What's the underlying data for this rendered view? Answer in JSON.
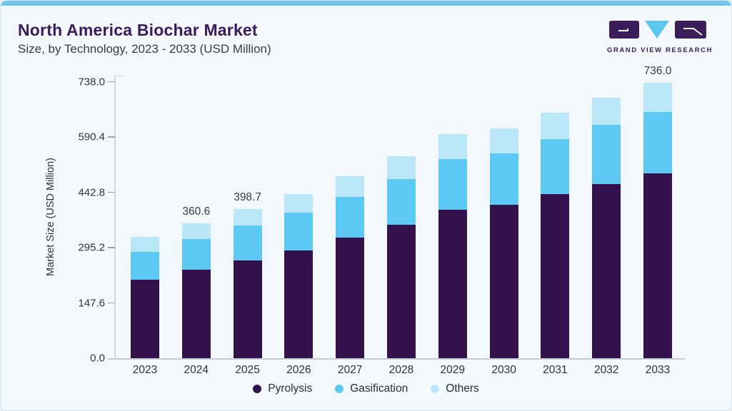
{
  "header": {
    "title": "North America Biochar Market",
    "subtitle": "Size, by Technology, 2023 - 2033 (USD Million)"
  },
  "logo": {
    "brand": "GRAND VIEW RESEARCH",
    "purple": "#3b1d5a",
    "blue": "#5bc6f0"
  },
  "chart_data": {
    "type": "bar",
    "stacked": true,
    "title": "North America Biochar Market Size, by Technology, 2023 - 2033 (USD Million)",
    "xlabel": "",
    "ylabel": "Market Size (USD Million)",
    "ylim": [
      0,
      738
    ],
    "grid": false,
    "legend_position": "bottom",
    "categories": [
      "2023",
      "2024",
      "2025",
      "2026",
      "2027",
      "2028",
      "2029",
      "2030",
      "2031",
      "2032",
      "2033"
    ],
    "series": [
      {
        "name": "Pyrolysis",
        "color": "#33114d",
        "values": [
          210,
          235.9,
          261.7,
          288,
          321,
          357,
          397,
          409,
          438,
          465,
          494
        ]
      },
      {
        "name": "Gasification",
        "color": "#5cc9f5",
        "values": [
          74,
          82.1,
          92.6,
          100,
          110,
          122,
          135,
          137,
          146,
          157,
          164
        ]
      },
      {
        "name": "Others",
        "color": "#b9e7f8",
        "values": [
          39,
          42.6,
          44.4,
          50,
          54,
          61,
          67,
          68,
          71,
          73,
          78
        ]
      }
    ],
    "totals": [
      323,
      360.6,
      398.7,
      438,
      485,
      540,
      599,
      614,
      655,
      695,
      736
    ],
    "total_labels": [
      "",
      "360.6",
      "398.7",
      "",
      "",
      "",
      "",
      "",
      "",
      "",
      "736.0"
    ],
    "yticks": [
      {
        "value": 0,
        "label": "0.0"
      },
      {
        "value": 147.6,
        "label": "147.6"
      },
      {
        "value": 295.2,
        "label": "295.2"
      },
      {
        "value": 442.8,
        "label": "442.8"
      },
      {
        "value": 590.4,
        "label": "590.4"
      },
      {
        "value": 738,
        "label": "738.0"
      }
    ]
  },
  "colors": {
    "card_background": "#f2f8fb",
    "top_strip": "#71c4ec",
    "title_text": "#3b1b5c",
    "axis_text": "#34343c"
  }
}
